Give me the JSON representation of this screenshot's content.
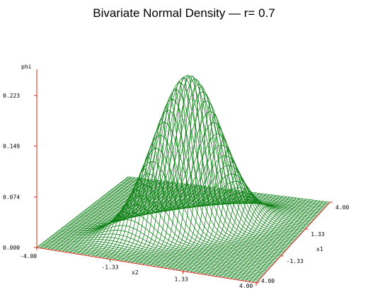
{
  "chart_data": {
    "type": "surface",
    "title": "Bivariate Normal Density — r= 0.7",
    "zlabel": "phi",
    "xlabel": "x2",
    "ylabel": "x1",
    "correlation": 0.7,
    "zlim": [
      0.0,
      0.223
    ],
    "xlim": [
      -4.0,
      4.0
    ],
    "ylim": [
      -4.0,
      4.0
    ],
    "z_ticks": [
      "0.000",
      "0.074",
      "0.149",
      "0.223"
    ],
    "x_ticks": [
      "-4.00",
      "-1.33",
      "1.33",
      "4.00"
    ],
    "y_ticks": [
      "-4.00",
      "-1.33",
      "1.33",
      "4.00"
    ],
    "mesh_color": "#0a7f12",
    "axis_color": "#d8281a",
    "grid": false
  }
}
